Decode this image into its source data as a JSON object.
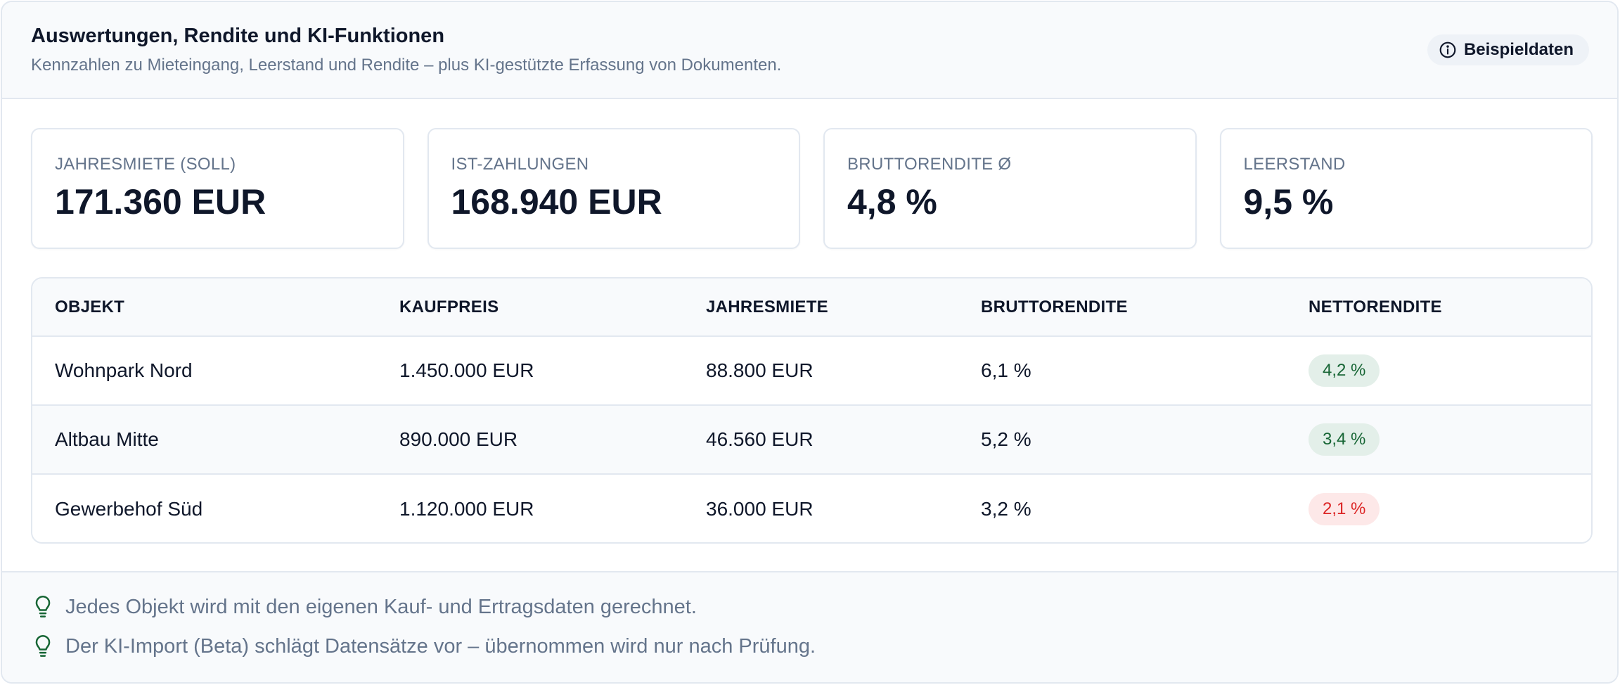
{
  "header": {
    "title": "Auswertungen, Rendite und KI-Funktionen",
    "subtitle": "Kennzahlen zu Mieteingang, Leerstand und Rendite – plus KI-gestützte Erfassung von Dokumenten.",
    "badge_label": "Beispieldaten",
    "badge_icon": "info-icon"
  },
  "kpis": [
    {
      "label": "JAHRESMIETE (SOLL)",
      "value": "171.360 EUR"
    },
    {
      "label": "IST-ZAHLUNGEN",
      "value": "168.940 EUR"
    },
    {
      "label": "BRUTTORENDITE Ø",
      "value": "4,8 %"
    },
    {
      "label": "LEERSTAND",
      "value": "9,5 %"
    }
  ],
  "table": {
    "columns": [
      "OBJEKT",
      "KAUFPREIS",
      "JAHRESMIETE",
      "BRUTTORENDITE",
      "NETTORENDITE"
    ],
    "rows": [
      {
        "objekt": "Wohnpark Nord",
        "kaufpreis": "1.450.000 EUR",
        "jahresmiete": "88.800 EUR",
        "brutto": "6,1 %",
        "netto": "4,2 %",
        "netto_status": "good"
      },
      {
        "objekt": "Altbau Mitte",
        "kaufpreis": "890.000 EUR",
        "jahresmiete": "46.560 EUR",
        "brutto": "5,2 %",
        "netto": "3,4 %",
        "netto_status": "good"
      },
      {
        "objekt": "Gewerbehof Süd",
        "kaufpreis": "1.120.000 EUR",
        "jahresmiete": "36.000 EUR",
        "brutto": "3,2 %",
        "netto": "2,1 %",
        "netto_status": "bad"
      }
    ]
  },
  "hints": [
    {
      "icon": "lightbulb-icon",
      "text": "Jedes Objekt wird mit den eigenen Kauf- und Ertragsdaten gerechnet."
    },
    {
      "icon": "lightbulb-icon",
      "text": "Der KI-Import (Beta) schlägt Datensätze vor – übernommen wird nur nach Prüfung."
    }
  ],
  "colors": {
    "accent_green": "#166534",
    "good_bg": "#e3efe9",
    "bad_text": "#dc2626",
    "bad_bg": "#fde8e8",
    "muted_text": "#64748b",
    "border": "#e2e8f0"
  }
}
